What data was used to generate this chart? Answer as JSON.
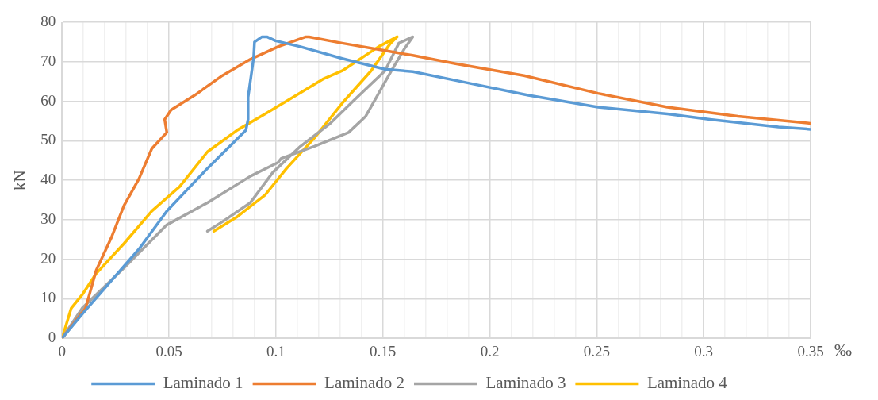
{
  "chart_data": {
    "type": "line",
    "xlabel": "‰",
    "ylabel": "kN",
    "xlim": [
      0,
      0.35
    ],
    "ylim": [
      0,
      80
    ],
    "xticks": [
      0,
      {
        "value": 0.01,
        "label": null
      },
      {
        "value": 0.02,
        "label": null
      },
      {
        "value": 0.03,
        "label": null
      },
      {
        "value": 0.04,
        "label": null
      },
      0.05,
      {
        "value": 0.06,
        "label": null
      },
      {
        "value": 0.07,
        "label": null
      },
      {
        "value": 0.08,
        "label": null
      },
      {
        "value": 0.09,
        "label": null
      },
      0.1,
      {
        "value": 0.11,
        "label": null
      },
      {
        "value": 0.12,
        "label": null
      },
      {
        "value": 0.13,
        "label": null
      },
      {
        "value": 0.14,
        "label": null
      },
      0.15,
      {
        "value": 0.16,
        "label": null
      },
      {
        "value": 0.17,
        "label": null
      },
      {
        "value": 0.18,
        "label": null
      },
      {
        "value": 0.19,
        "label": null
      },
      0.2,
      {
        "value": 0.21,
        "label": null
      },
      {
        "value": 0.22,
        "label": null
      },
      {
        "value": 0.23,
        "label": null
      },
      {
        "value": 0.24,
        "label": null
      },
      0.25,
      {
        "value": 0.26,
        "label": null
      },
      {
        "value": 0.27,
        "label": null
      },
      {
        "value": 0.28,
        "label": null
      },
      {
        "value": 0.29,
        "label": null
      },
      0.3,
      {
        "value": 0.31,
        "label": null
      },
      {
        "value": 0.32,
        "label": null
      },
      {
        "value": 0.33,
        "label": null
      },
      {
        "value": 0.34,
        "label": null
      },
      0.35
    ],
    "yticks": [
      0,
      10,
      20,
      30,
      40,
      50,
      60,
      70,
      80
    ],
    "grid": true,
    "legend": "bottom",
    "marker": "none",
    "line_style": "solid",
    "series": [
      {
        "name": "Laminado 1",
        "color": "#5b9bd5",
        "x": [
          0,
          0.0094,
          0.036,
          0.049,
          0.068,
          0.086,
          0.087,
          0.087,
          0.0896,
          0.09,
          0.0935,
          0.0958,
          0.0998,
          0.1115,
          0.131,
          0.151,
          0.164,
          0.19,
          0.218,
          0.2506,
          0.283,
          0.303,
          0.335,
          0.35
        ],
        "values": [
          0,
          6.1,
          22.6,
          32.2,
          43,
          52.7,
          55.4,
          61,
          71,
          75,
          76.3,
          76.3,
          75.3,
          73.8,
          70.8,
          68.1,
          67.5,
          64.6,
          61.5,
          58.5,
          56.8,
          55.4,
          53.5,
          52.9
        ]
      },
      {
        "name": "Laminado 2",
        "color": "#ed7d31",
        "x": [
          0,
          0.011,
          0.016,
          0.023,
          0.029,
          0.036,
          0.042,
          0.049,
          0.048,
          0.051,
          0.062,
          0.075,
          0.088,
          0.101,
          0.114,
          0.1155,
          0.131,
          0.151,
          0.164,
          0.184,
          0.216,
          0.2506,
          0.283,
          0.316,
          0.35
        ],
        "values": [
          0,
          7.6,
          17.2,
          25.4,
          33.6,
          40.4,
          48,
          52.1,
          55.4,
          57.8,
          61.5,
          66.5,
          70.6,
          73.8,
          76.3,
          76.3,
          74.7,
          72.8,
          71.6,
          69.5,
          66.5,
          62,
          58.5,
          56.2,
          54.4
        ]
      },
      {
        "name": "Laminado 3",
        "color": "#a5a5a5",
        "x": [
          0,
          0.0094,
          0.029,
          0.049,
          0.068,
          0.088,
          0.101,
          0.1025,
          0.118,
          0.134,
          0.142,
          0.147,
          0.154,
          0.16,
          0.164,
          0.1575,
          0.151,
          0.138,
          0.125,
          0.1115,
          0.0986,
          0.088,
          0.075,
          0.068
        ],
        "values": [
          0,
          7.6,
          17.8,
          28.7,
          34.3,
          41,
          44.5,
          45.5,
          48.6,
          52.1,
          56.2,
          61,
          67.7,
          73.2,
          76.3,
          74.7,
          67.7,
          61,
          54.2,
          48.6,
          42,
          34.3,
          29.5,
          27.1
        ]
      },
      {
        "name": "Laminado 4",
        "color": "#ffc000",
        "x": [
          0,
          0.0043,
          0.0094,
          0.016,
          0.029,
          0.042,
          0.055,
          0.068,
          0.082,
          0.095,
          0.108,
          0.122,
          0.131,
          0.148,
          0.1567,
          0.1536,
          0.1445,
          0.131,
          0.118,
          0.105,
          0.095,
          0.082,
          0.071
        ],
        "values": [
          0,
          7.6,
          11,
          16.4,
          24,
          32.2,
          38.4,
          47.2,
          52.7,
          56.8,
          61,
          65.6,
          67.7,
          73.8,
          76.3,
          74.7,
          67.7,
          59.5,
          50.7,
          43,
          36.3,
          30.8,
          27.1
        ]
      }
    ]
  }
}
